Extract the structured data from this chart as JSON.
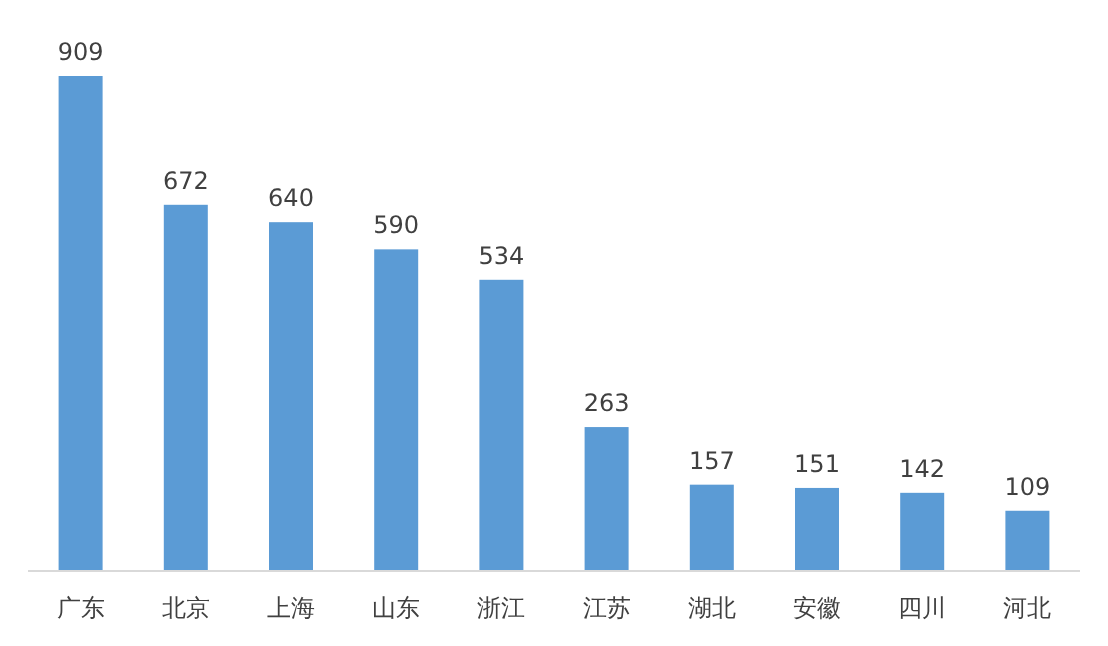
{
  "chart_data": {
    "type": "bar",
    "categories": [
      "广东",
      "北京",
      "上海",
      "山东",
      "浙江",
      "江苏",
      "湖北",
      "安徽",
      "四川",
      "河北"
    ],
    "values": [
      909,
      672,
      640,
      590,
      534,
      263,
      157,
      151,
      142,
      109
    ],
    "color": "#5b9bd5",
    "data_labels": true
  }
}
